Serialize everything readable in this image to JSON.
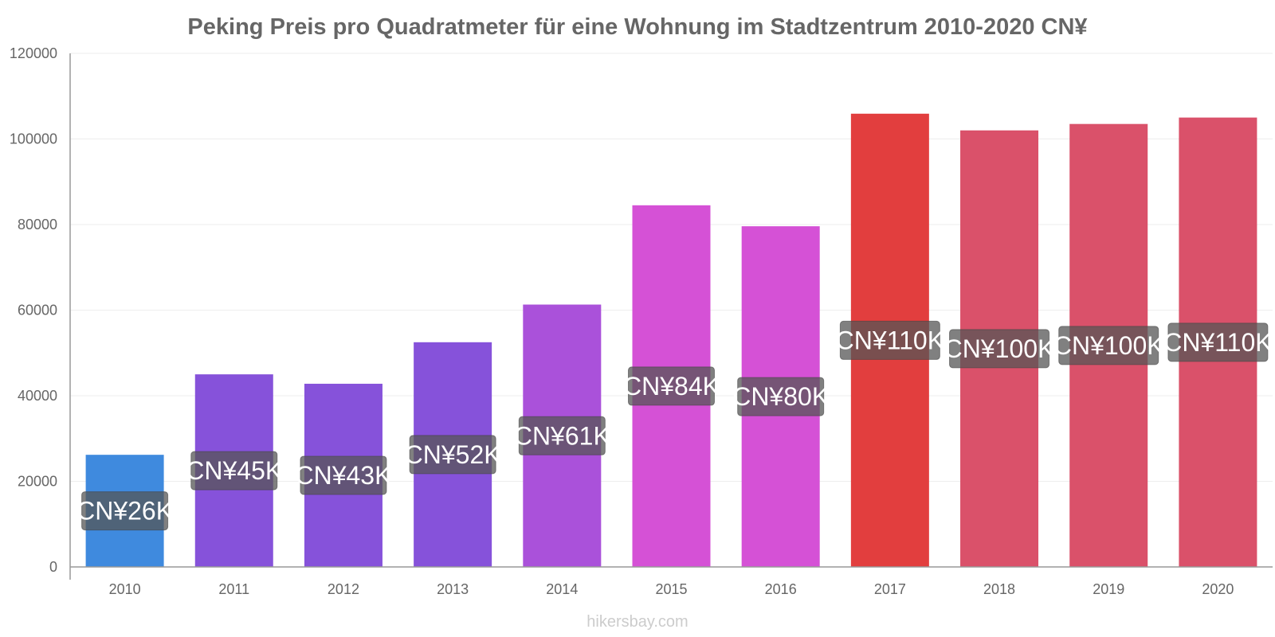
{
  "chart_data": {
    "type": "bar",
    "title": "Peking Preis pro Quadratmeter für eine Wohnung im Stadtzentrum 2010-2020 CN¥",
    "xlabel": "",
    "ylabel": "",
    "categories": [
      "2010",
      "2011",
      "2012",
      "2013",
      "2014",
      "2015",
      "2016",
      "2017",
      "2018",
      "2019",
      "2020"
    ],
    "values": [
      26200,
      45000,
      42800,
      52500,
      61300,
      84500,
      79600,
      105900,
      102000,
      103500,
      105000
    ],
    "data_labels": [
      "CN¥26K",
      "CN¥45K",
      "CN¥43K",
      "CN¥52K",
      "CN¥61K",
      "CN¥84K",
      "CN¥80K",
      "CN¥110K",
      "CN¥100K",
      "CN¥100K",
      "CN¥110K"
    ],
    "bar_colors": [
      "#3584dc",
      "#8049d8",
      "#8049d8",
      "#8049d8",
      "#a548d8",
      "#d348d4",
      "#d348d4",
      "#e03434",
      "#d84862",
      "#d84862",
      "#d84862"
    ],
    "ylim": [
      0,
      120000
    ],
    "yticks": [
      0,
      20000,
      40000,
      60000,
      80000,
      100000,
      120000
    ],
    "ytick_labels": [
      "0",
      "20000",
      "40000",
      "60000",
      "80000",
      "100000",
      "120000"
    ],
    "grid": true,
    "legend": "none"
  },
  "footer": {
    "watermark": "hikersbay.com"
  },
  "colors": {
    "title": "#666666",
    "axis": "#999999",
    "grid": "#eeeeee",
    "label_box": "#555555",
    "watermark": "#cccccc"
  }
}
